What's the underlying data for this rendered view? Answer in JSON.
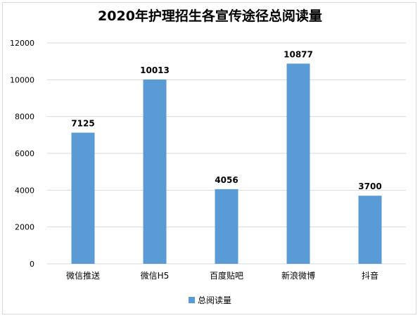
{
  "chart_data": {
    "type": "bar",
    "title": "2020年护理招生各宣传途径总阅读量",
    "xlabel": "",
    "ylabel": "",
    "categories": [
      "微信推送",
      "微信H5",
      "百度贴吧",
      "新浪微博",
      "抖音"
    ],
    "series": [
      {
        "name": "总阅读量",
        "values": [
          7125,
          10013,
          4056,
          10877,
          3700
        ],
        "color": "#5b9bd5"
      }
    ],
    "yticks": [
      "0",
      "2000",
      "4000",
      "6000",
      "8000",
      "10000",
      "12000"
    ],
    "ylim": [
      0,
      12000
    ],
    "grid": true,
    "legend": "bottom"
  }
}
